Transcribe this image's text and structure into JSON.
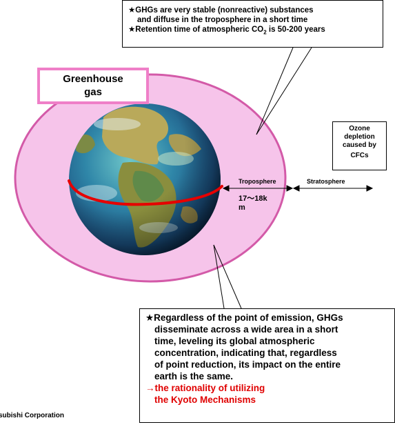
{
  "top_callout": {
    "lines": [
      "★GHGs are very stable (nonreactive) substances",
      "and diffuse in the troposphere in a short time"
    ],
    "retention_prefix": "★Retention time of atmospheric CO",
    "retention_sub": "2",
    "retention_suffix": " is 50-200 years"
  },
  "greenhouse_box": {
    "line1": "Greenhouse",
    "line2": "gas"
  },
  "ozone_box": {
    "line1": "Ozone",
    "line2": "depletion",
    "line3": "caused by",
    "line4": "CFCs"
  },
  "troposphere_label": "Troposphere",
  "stratosphere_label": "Stratosphere",
  "thickness": {
    "line1": "17～18k",
    "line2": "m"
  },
  "bottom_callout": {
    "lines": [
      "★Regardless of the point of emission, GHGs",
      "disseminate across a wide area in a short",
      "time, leveling its global atmospheric",
      "concentration, indicating that, regardless",
      "of point reduction, its impact on the entire",
      "earth is the same."
    ],
    "conclusion_line1": "→the rationality of utilizing",
    "conclusion_line2": "the Kyoto Mechanisms"
  },
  "footer": "subishi Corporation",
  "colors": {
    "atmosphere_fill": "#f6c4ea",
    "atmosphere_stroke": "#d35aa8",
    "greenhouse_border": "#ef7fc8",
    "equator_line": "#e60000",
    "conclusion_text": "#e00000"
  }
}
